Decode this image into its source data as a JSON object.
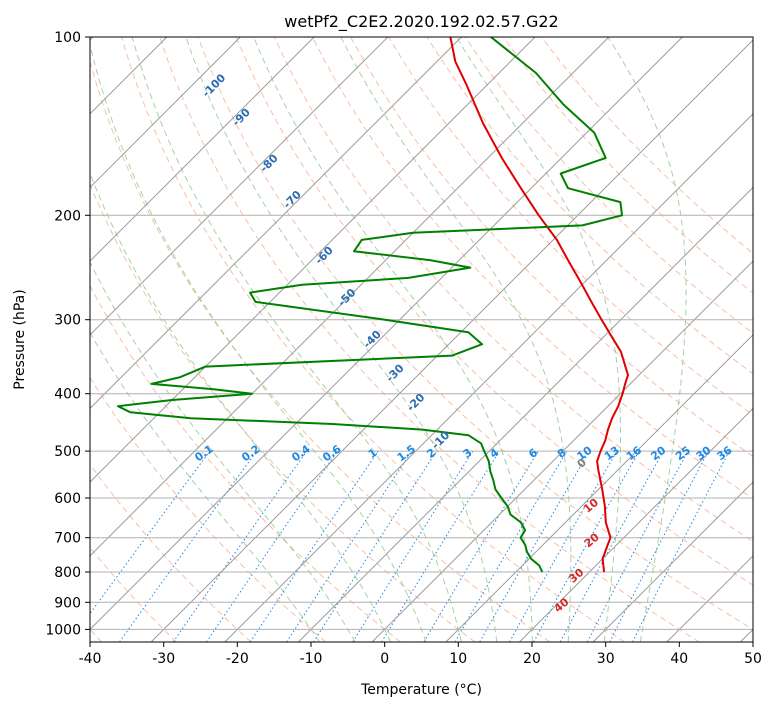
{
  "chart_data": {
    "type": "line",
    "title": "wetPf2_C2E2.2020.192.02.57.G22",
    "xlabel": "Temperature (°C)",
    "ylabel": "Pressure (hPa)",
    "xlim": [
      -40,
      50
    ],
    "ylim_hpa": [
      1050,
      100
    ],
    "y_scale": "log",
    "x_ticks": [
      -40,
      -30,
      -20,
      -10,
      0,
      10,
      20,
      30,
      40,
      50
    ],
    "y_ticks": [
      1000,
      900,
      800,
      700,
      600,
      500,
      400,
      300,
      200,
      100
    ],
    "grid": true,
    "skew_reference_pressure_hpa": 1000,
    "colors": {
      "temperature": "#e00000",
      "dewpoint": "#008000",
      "isotherm": "#9a9a9a",
      "dry_adiabat": "#f4a582",
      "moist_adiabat": "#7fbf7f",
      "mixing_ratio": "#1e88e5",
      "mixing_ratio_label": "#1e88e5",
      "dry_label": "#2b6cb0",
      "wet_bulb_label": "#d62728"
    },
    "series": [
      {
        "name": "temperature",
        "points": [
          {
            "p": 800,
            "t": 22.0
          },
          {
            "p": 760,
            "t": 20.0
          },
          {
            "p": 720,
            "t": 18.8
          },
          {
            "p": 700,
            "t": 18.2
          },
          {
            "p": 660,
            "t": 15.5
          },
          {
            "p": 620,
            "t": 13.2
          },
          {
            "p": 580,
            "t": 10.5
          },
          {
            "p": 540,
            "t": 7.5
          },
          {
            "p": 520,
            "t": 6.0
          },
          {
            "p": 500,
            "t": 5.1
          },
          {
            "p": 480,
            "t": 4.3
          },
          {
            "p": 460,
            "t": 3.2
          },
          {
            "p": 440,
            "t": 2.2
          },
          {
            "p": 420,
            "t": 1.4
          },
          {
            "p": 400,
            "t": 0.3
          },
          {
            "p": 385,
            "t": -0.7
          },
          {
            "p": 372,
            "t": -1.5
          },
          {
            "p": 360,
            "t": -3.0
          },
          {
            "p": 340,
            "t": -5.6
          },
          {
            "p": 320,
            "t": -9.0
          },
          {
            "p": 300,
            "t": -12.6
          },
          {
            "p": 280,
            "t": -16.4
          },
          {
            "p": 260,
            "t": -20.4
          },
          {
            "p": 240,
            "t": -24.8
          },
          {
            "p": 220,
            "t": -29.5
          },
          {
            "p": 200,
            "t": -35.3
          },
          {
            "p": 180,
            "t": -41.4
          },
          {
            "p": 160,
            "t": -48.1
          },
          {
            "p": 140,
            "t": -55.3
          },
          {
            "p": 120,
            "t": -63.0
          },
          {
            "p": 110,
            "t": -67.5
          },
          {
            "p": 100,
            "t": -71.5
          }
        ]
      },
      {
        "name": "dewpoint",
        "points": [
          {
            "p": 800,
            "t": 13.6
          },
          {
            "p": 780,
            "t": 12.3
          },
          {
            "p": 760,
            "t": 10.3
          },
          {
            "p": 740,
            "t": 8.8
          },
          {
            "p": 720,
            "t": 7.6
          },
          {
            "p": 700,
            "t": 6.0
          },
          {
            "p": 680,
            "t": 5.6
          },
          {
            "p": 660,
            "t": 4.0
          },
          {
            "p": 640,
            "t": 1.5
          },
          {
            "p": 620,
            "t": 0.0
          },
          {
            "p": 600,
            "t": -2.0
          },
          {
            "p": 580,
            "t": -4.0
          },
          {
            "p": 560,
            "t": -5.5
          },
          {
            "p": 540,
            "t": -7.2
          },
          {
            "p": 520,
            "t": -8.7
          },
          {
            "p": 500,
            "t": -10.7
          },
          {
            "p": 485,
            "t": -12.2
          },
          {
            "p": 470,
            "t": -15.0
          },
          {
            "p": 460,
            "t": -22.0
          },
          {
            "p": 450,
            "t": -35.0
          },
          {
            "p": 440,
            "t": -55.0
          },
          {
            "p": 430,
            "t": -64.0
          },
          {
            "p": 420,
            "t": -66.5
          },
          {
            "p": 410,
            "t": -60.0
          },
          {
            "p": 400,
            "t": -50.0
          },
          {
            "p": 393,
            "t": -56.0
          },
          {
            "p": 385,
            "t": -65.0
          },
          {
            "p": 375,
            "t": -62.0
          },
          {
            "p": 360,
            "t": -60.0
          },
          {
            "p": 345,
            "t": -28.0
          },
          {
            "p": 330,
            "t": -25.5
          },
          {
            "p": 315,
            "t": -29.0
          },
          {
            "p": 300,
            "t": -42.0
          },
          {
            "p": 280,
            "t": -62.0
          },
          {
            "p": 270,
            "t": -64.0
          },
          {
            "p": 262,
            "t": -58.0
          },
          {
            "p": 255,
            "t": -44.5
          },
          {
            "p": 245,
            "t": -37.5
          },
          {
            "p": 238,
            "t": -44.0
          },
          {
            "p": 230,
            "t": -55.5
          },
          {
            "p": 220,
            "t": -56.0
          },
          {
            "p": 214,
            "t": -50.0
          },
          {
            "p": 208,
            "t": -28.0
          },
          {
            "p": 200,
            "t": -24.0
          },
          {
            "p": 190,
            "t": -26.0
          },
          {
            "p": 180,
            "t": -35.0
          },
          {
            "p": 170,
            "t": -38.0
          },
          {
            "p": 160,
            "t": -34.0
          },
          {
            "p": 145,
            "t": -39.0
          },
          {
            "p": 130,
            "t": -47.0
          },
          {
            "p": 115,
            "t": -55.0
          },
          {
            "p": 100,
            "t": -66.0
          }
        ]
      }
    ],
    "isotherms_c": [
      -160,
      -150,
      -140,
      -130,
      -120,
      -110,
      -100,
      -90,
      -80,
      -70,
      -60,
      -50,
      -40,
      -30,
      -20,
      -10,
      0,
      10,
      20,
      30,
      40,
      50
    ],
    "dry_adiabats_c": [
      -60,
      -50,
      -40,
      -30,
      -20,
      -10,
      0,
      10,
      20,
      30,
      40,
      50,
      60,
      70,
      80,
      90,
      100,
      110,
      120,
      130,
      140
    ],
    "moist_adiabats_c": [
      -10,
      -5,
      0,
      5,
      10,
      15,
      20,
      25,
      30,
      35
    ],
    "mixing_ratios_gkg": [
      0.1,
      0.2,
      0.4,
      0.6,
      1,
      1.5,
      2,
      3,
      4,
      6,
      8,
      10,
      13,
      16,
      20,
      25,
      30,
      36
    ],
    "mixing_ratio_labels": [
      "0.1",
      "0.2",
      "0.4",
      "0.6",
      "1",
      "1.5",
      "2",
      "3",
      "4",
      "6",
      "8",
      "10",
      "13",
      "16",
      "20",
      "25",
      "30",
      "36"
    ],
    "dry_labels": [
      {
        "text": "-100",
        "p": 122,
        "t": -96.3
      },
      {
        "text": "-90",
        "p": 138,
        "t": -88.3
      },
      {
        "text": "-80",
        "p": 165,
        "t": -78.3
      },
      {
        "text": "-70",
        "p": 190,
        "t": -70.2
      },
      {
        "text": "-60",
        "p": 236,
        "t": -58.3
      },
      {
        "text": "-50",
        "p": 278,
        "t": -49.5
      },
      {
        "text": "-40",
        "p": 327,
        "t": -40.4
      },
      {
        "text": "-30",
        "p": 373,
        "t": -32.7
      },
      {
        "text": "-20",
        "p": 418,
        "t": -25.9
      },
      {
        "text": "-10",
        "p": 484,
        "t": -17.4
      }
    ],
    "wet_bulb_labels": [
      {
        "text": "0",
        "p": 530,
        "t": 4.9
      },
      {
        "text": "10",
        "p": 625,
        "t": 11.9
      },
      {
        "text": "20",
        "p": 715,
        "t": 16.7
      },
      {
        "text": "30",
        "p": 820,
        "t": 19.4
      },
      {
        "text": "40",
        "p": 920,
        "t": 21.4
      }
    ]
  }
}
